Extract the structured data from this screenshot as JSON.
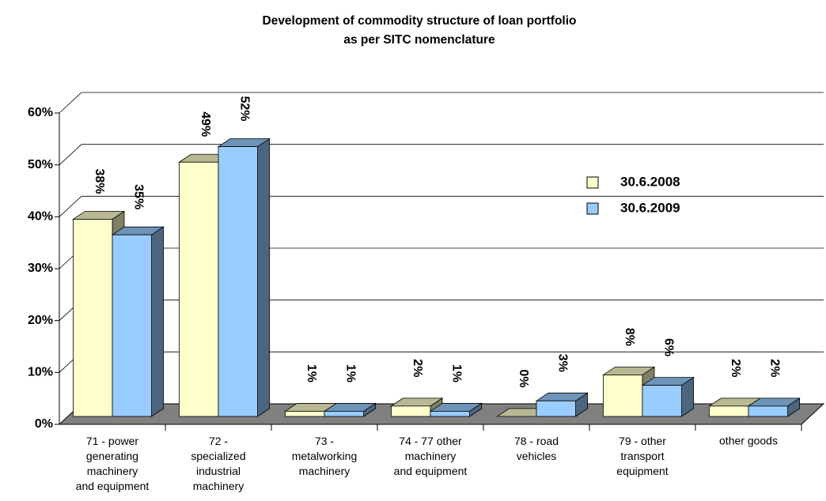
{
  "chart_data": {
    "type": "bar3d",
    "title": "Development of commodity structure of loan portfolio\nas per SITC nomenclature",
    "categories": [
      "71 - power\ngenerating\nmachinery\nand equipment",
      "72 -\nspecialized\nindustrial\nmachinery",
      "73 -\nmetalworking\nmachinery",
      "74 - 77 other\nmachinery\nand equipment",
      "78 - road\nvehicles",
      "79 - other\ntransport\nequipment",
      "other goods"
    ],
    "series": [
      {
        "name": "30.6.2008",
        "color": "#ffffcc",
        "values": [
          38,
          49,
          1,
          2,
          0,
          8,
          2
        ],
        "value_labels": [
          "38%",
          "49%",
          "1%",
          "2%",
          "0%",
          "8%",
          "2%"
        ]
      },
      {
        "name": "30.6.2009",
        "color": "#99ccff",
        "values": [
          35,
          52,
          1,
          1,
          3,
          6,
          2
        ],
        "value_labels": [
          "35%",
          "52%",
          "1%",
          "1%",
          "3%",
          "6%",
          "2%"
        ]
      }
    ],
    "ylim": [
      0,
      60
    ],
    "yticks": [
      {
        "value": 0,
        "label": "0%"
      },
      {
        "value": 10,
        "label": "10%"
      },
      {
        "value": 20,
        "label": "20%"
      },
      {
        "value": 30,
        "label": "30%"
      },
      {
        "value": 40,
        "label": "40%"
      },
      {
        "value": 50,
        "label": "50%"
      },
      {
        "value": 60,
        "label": "60%"
      }
    ],
    "grid": true,
    "legend": "right"
  }
}
